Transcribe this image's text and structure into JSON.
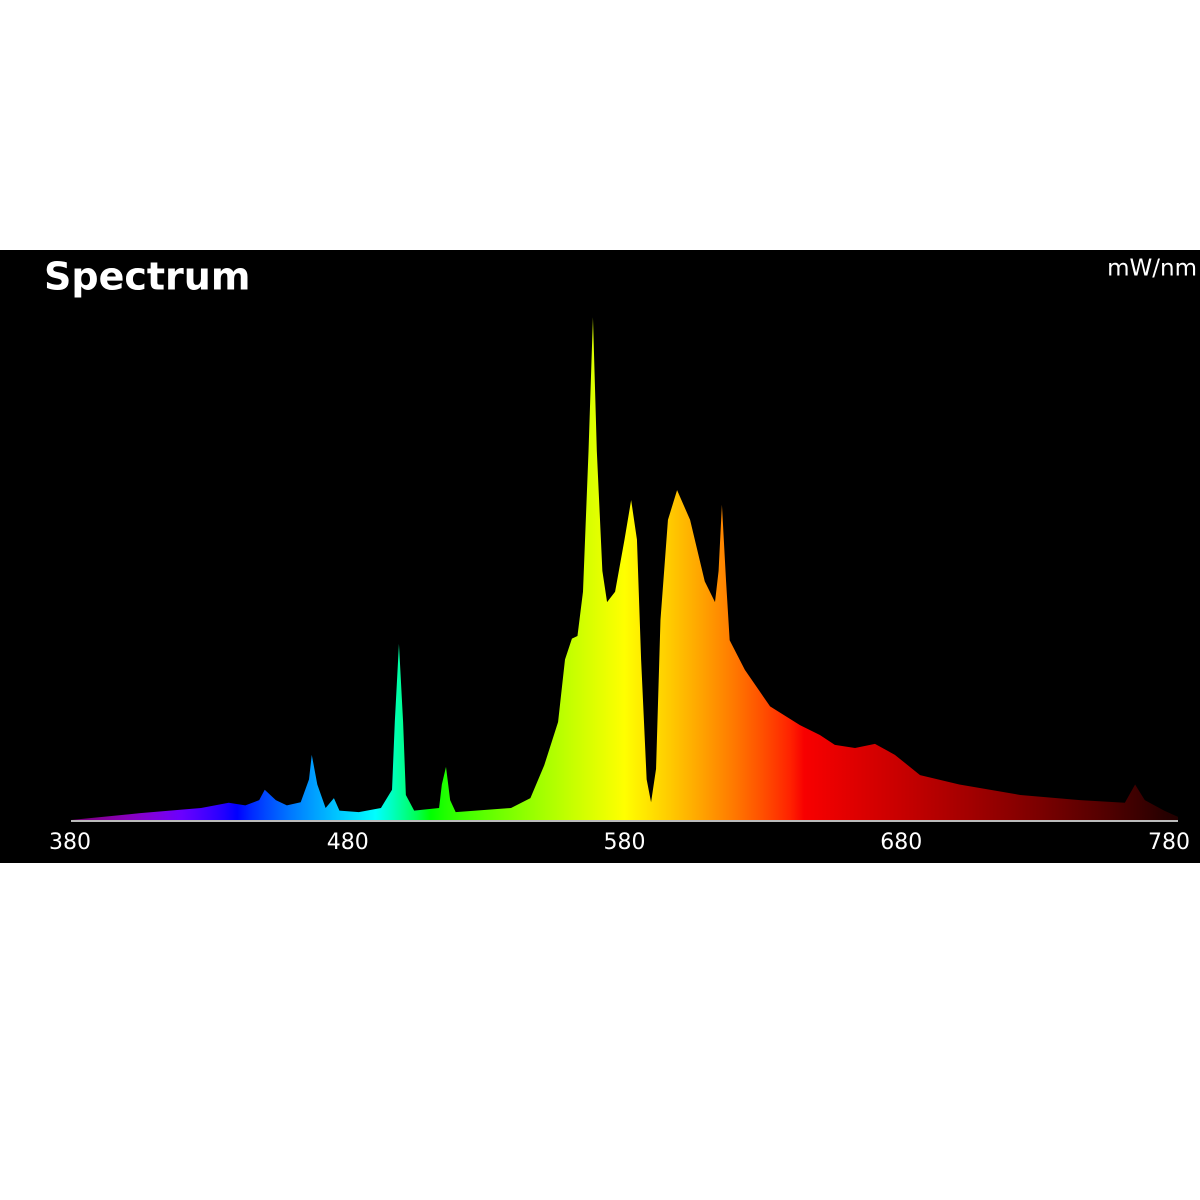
{
  "chart_data": {
    "type": "area",
    "title": "Spectrum",
    "y_label": "mW/nm",
    "x": [
      380,
      405,
      427,
      437,
      443,
      448,
      450,
      454,
      458,
      463,
      466,
      467,
      469,
      472,
      475,
      477,
      484,
      492,
      496,
      497,
      498.5,
      500,
      501,
      504,
      513,
      514,
      515.5,
      517,
      519,
      539,
      546,
      551,
      556,
      558.5,
      561,
      563,
      565,
      567,
      568.6,
      570,
      572,
      573.7,
      576.6,
      580,
      582.4,
      584.5,
      586,
      588,
      589.6,
      591.4,
      593,
      595.7,
      599,
      603.7,
      609,
      612.7,
      614,
      615.2,
      616.7,
      618,
      623.5,
      632.6,
      643.4,
      650.6,
      656,
      663.3,
      670.5,
      677.7,
      686.8,
      701,
      723,
      744.6,
      760.8,
      764.5,
      768,
      775,
      780
    ],
    "values": [
      0.2,
      1.5,
      2.5,
      3.5,
      3,
      4,
      6,
      4,
      3,
      3.6,
      8,
      12.7,
      7,
      2.5,
      4.4,
      2,
      1.7,
      2.5,
      6,
      19,
      34,
      19,
      5,
      2,
      2.5,
      7,
      10.4,
      4,
      1.7,
      2.5,
      4.4,
      10.7,
      19,
      31,
      35,
      35.5,
      44,
      71,
      96.7,
      71,
      48,
      42,
      44,
      54,
      61.6,
      54,
      31,
      8,
      3.6,
      10,
      38.6,
      57.8,
      63.5,
      57.8,
      46,
      42,
      48,
      60.7,
      46,
      34.7,
      29,
      22,
      18.4,
      16.5,
      14.6,
      14,
      14.8,
      12.7,
      8.8,
      7,
      5,
      4,
      3.5,
      7,
      4,
      2,
      0.8
    ],
    "xlim": [
      380,
      780
    ],
    "xticks": [
      380,
      480,
      580,
      680,
      780
    ],
    "ylim": [
      0,
      100
    ],
    "grid": false
  }
}
